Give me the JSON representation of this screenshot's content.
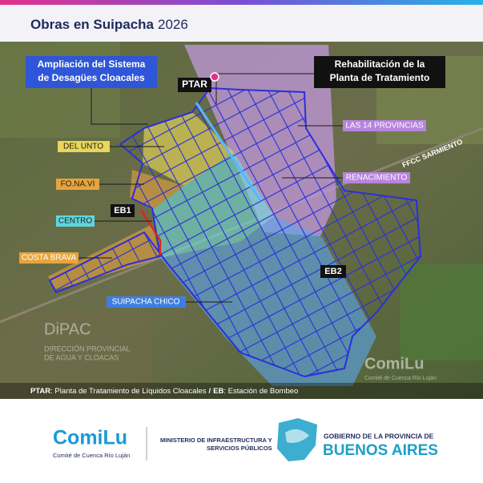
{
  "header": {
    "title": "Obras en Suipacha",
    "year": "2026"
  },
  "map": {
    "callouts": {
      "expansion": [
        "Ampliación del Sistema",
        "de Desagües Cloacales"
      ],
      "rehabilitation": [
        "Rehabilitación de la",
        "Planta de Tratamiento"
      ]
    },
    "points": {
      "ptar": "PTAR",
      "eb1": "EB1",
      "eb2": "EB2"
    },
    "zones": {
      "las14": "LAS 14 PROVINCIAS",
      "delunto": "DEL UNTO",
      "fonavi": "FO.NA.VI",
      "renacimiento": "RENACIMIENTO",
      "centro": "CENTRO",
      "costabrava": "COSTA BRAVA",
      "suipachachico": "SUIPACHA CHICO"
    },
    "railway": "FFCC SARMIENTO",
    "watermarks": {
      "dipac": "DiPAC",
      "dipac_sub": [
        "DIRECCIÓN PROVINCIAL",
        "DE AGUA Y CLOACAS"
      ],
      "comilu": "ComiLu",
      "comilu_sub": "Comité de Cuenca Río Luján"
    },
    "legend": {
      "items": [
        {
          "abbr": "PTAR",
          "text": ": Planta de Tratamiento de Líquidos Cloacales"
        },
        {
          "abbr": "EB",
          "text": ": Estación de Bombeo"
        }
      ],
      "separator": "/"
    }
  },
  "footer": {
    "comilu": "ComiLu",
    "comilu_sub": "Comité de Cuenca Río Luján",
    "ministry": [
      "MINISTERIO DE INFRAESTRUCTURA Y",
      "SERVICIOS PÚBLICOS"
    ],
    "government": "GOBIERNO DE LA PROVINCIA DE",
    "province": "BUENOS AIRES"
  }
}
